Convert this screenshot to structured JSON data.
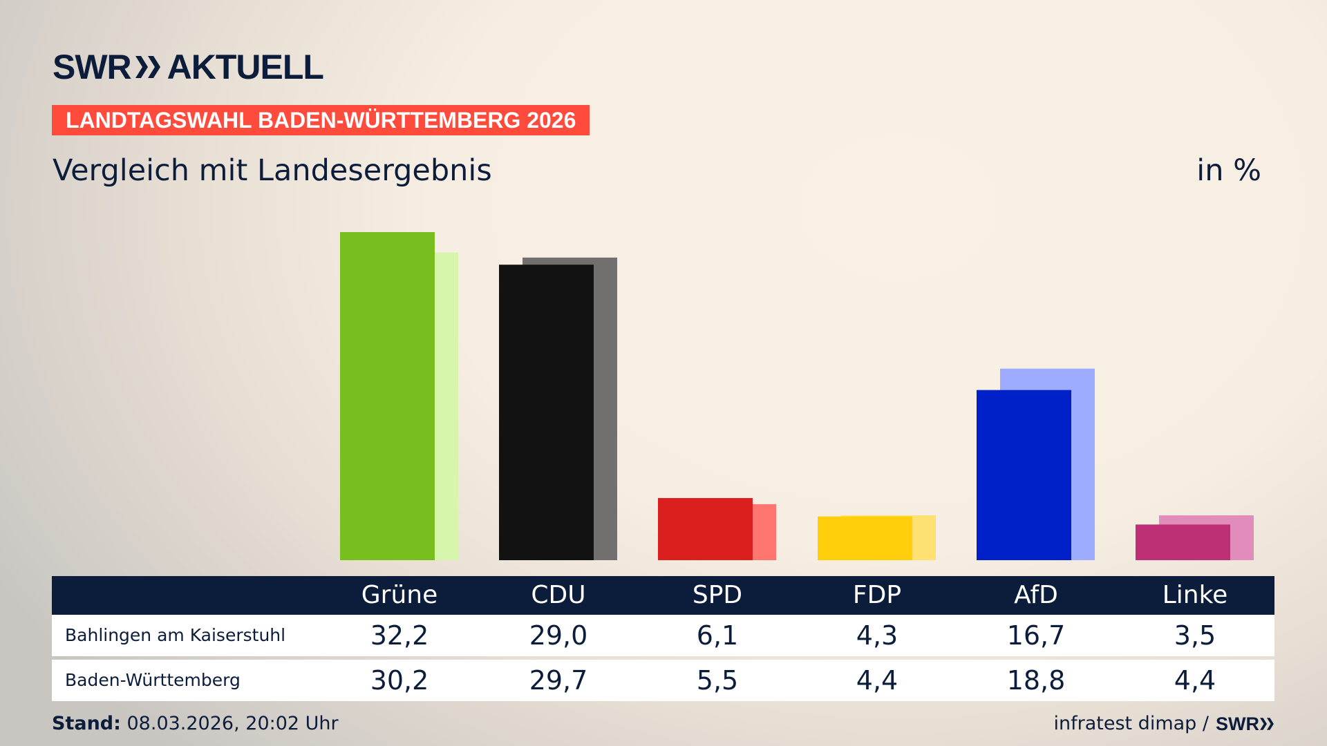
{
  "header": {
    "logo": "SWR AKTUELL",
    "logo_brand": "SWR",
    "logo_word": "AKTUELL",
    "banner": "LANDTAGSWAHL BADEN-WÜRTTEMBERG 2026",
    "subtitle": "Vergleich mit Landesergebnis",
    "unit": "in %"
  },
  "colors": {
    "banner": "#ff4b3b",
    "navy": "#0c1d3c"
  },
  "chart_data": {
    "type": "bar",
    "categories": [
      "Grüne",
      "CDU",
      "SPD",
      "FDP",
      "AfD",
      "Linke"
    ],
    "series": [
      {
        "name": "Bahlingen am Kaiserstuhl",
        "values": [
          32.2,
          29.0,
          6.1,
          4.3,
          16.7,
          3.5
        ],
        "colors": [
          "#78be1e",
          "#121212",
          "#d9201f",
          "#ffcf0b",
          "#0020c8",
          "#be3075"
        ]
      },
      {
        "name": "Baden-Württemberg",
        "values": [
          30.2,
          29.7,
          5.5,
          4.4,
          18.8,
          4.4
        ],
        "colors": [
          "#d8f5ad",
          "#72706e",
          "#ff7671",
          "#ffe171",
          "#9dacff",
          "#e18cba"
        ]
      }
    ],
    "ylim": [
      0,
      32.2
    ]
  },
  "table": {
    "headers": [
      "Grüne",
      "CDU",
      "SPD",
      "FDP",
      "AfD",
      "Linke"
    ],
    "rows": [
      {
        "label": "Bahlingen am Kaiserstuhl",
        "values": [
          "32,2",
          "29,0",
          "6,1",
          "4,3",
          "16,7",
          "3,5"
        ]
      },
      {
        "label": "Baden-Württemberg",
        "values": [
          "30,2",
          "29,7",
          "5,5",
          "4,4",
          "18,8",
          "4,4"
        ]
      }
    ]
  },
  "footer": {
    "stand_label": "Stand:",
    "stand_value": " 08.03.2026, 20:02 Uhr",
    "source": "infratest dimap /",
    "source_logo": "SWR"
  }
}
